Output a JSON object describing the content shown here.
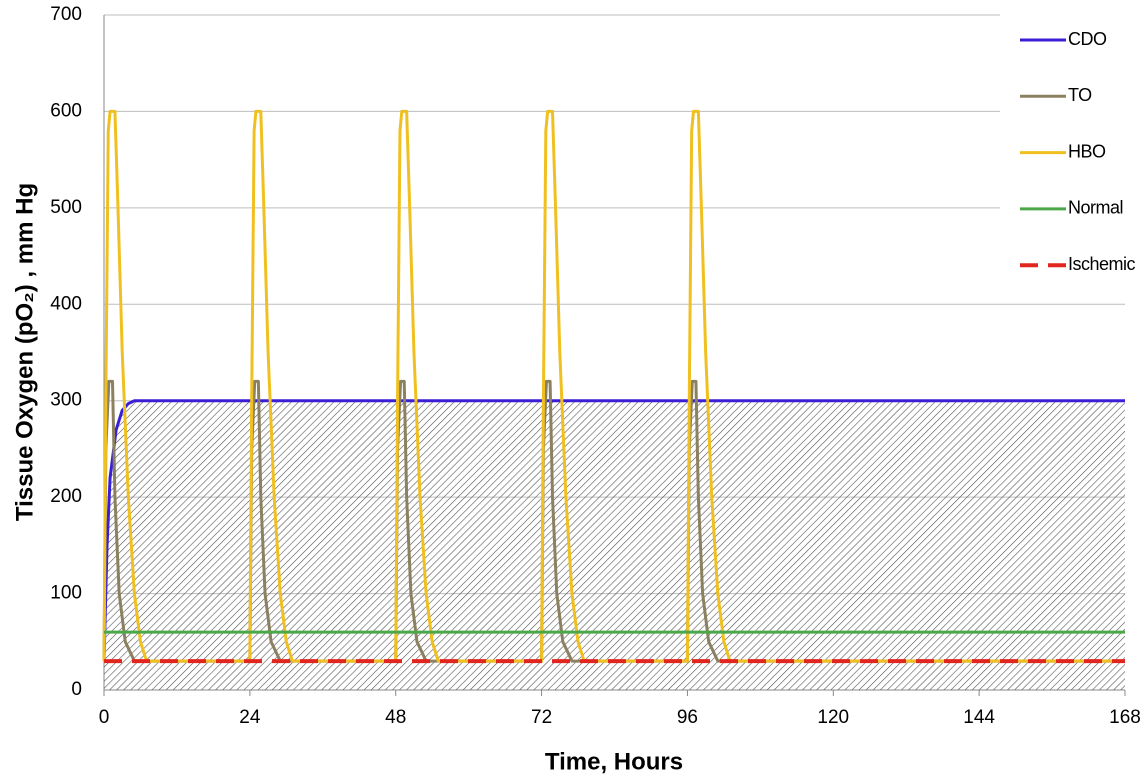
{
  "chart_data": {
    "type": "line",
    "x_label": "Time, Hours",
    "y_label": "Tissue Oxygen (pO₂) , mm Hg",
    "xlim": [
      0,
      168
    ],
    "xticks": [
      0,
      24,
      48,
      72,
      96,
      120,
      144,
      168
    ],
    "ylim": [
      0,
      700
    ],
    "yticks": [
      0,
      100,
      200,
      300,
      400,
      500,
      600,
      700
    ],
    "grid": true,
    "legend": "right",
    "series": [
      {
        "name": "CDO",
        "color": "#3a1fd6",
        "hatch": true,
        "x": [
          0,
          0.5,
          1,
          2,
          3,
          4,
          5,
          168
        ],
        "values": [
          30,
          150,
          220,
          270,
          290,
          297,
          300,
          300
        ]
      },
      {
        "name": "TO",
        "color": "#8b8060",
        "x": [
          0,
          0.3,
          0.8,
          1.4,
          1.8,
          2.5,
          3.5,
          5,
          24,
          24.3,
          24.8,
          25.4,
          25.8,
          26.5,
          27.5,
          29,
          48,
          48.3,
          48.8,
          49.4,
          49.8,
          50.5,
          51.5,
          53,
          72,
          72.3,
          72.8,
          73.4,
          73.8,
          74.5,
          75.5,
          77,
          96,
          96.3,
          96.8,
          97.4,
          97.8,
          98.5,
          99.5,
          101,
          168
        ],
        "values": [
          30,
          250,
          320,
          320,
          200,
          100,
          50,
          30,
          30,
          250,
          320,
          320,
          200,
          100,
          50,
          30,
          30,
          250,
          320,
          320,
          200,
          100,
          50,
          30,
          30,
          250,
          320,
          320,
          200,
          100,
          50,
          30,
          30,
          250,
          320,
          320,
          200,
          100,
          50,
          30,
          30
        ]
      },
      {
        "name": "HBO",
        "color": "#f0c020",
        "x": [
          0,
          0.3,
          0.7,
          1,
          1.8,
          2.3,
          3,
          4,
          5,
          6,
          7,
          24,
          24.3,
          24.7,
          25,
          25.8,
          26.3,
          27,
          28,
          29,
          30,
          31,
          48,
          48.3,
          48.7,
          49,
          49.8,
          50.3,
          51,
          52,
          53,
          54,
          55,
          72,
          72.3,
          72.7,
          73,
          73.8,
          74.3,
          75,
          76,
          77,
          78,
          79,
          96,
          96.3,
          96.7,
          97,
          97.8,
          98.3,
          99,
          100,
          101,
          102,
          103,
          168
        ],
        "values": [
          30,
          300,
          580,
          600,
          600,
          500,
          350,
          200,
          100,
          50,
          30,
          30,
          300,
          580,
          600,
          600,
          500,
          350,
          200,
          100,
          50,
          30,
          30,
          300,
          580,
          600,
          600,
          500,
          350,
          200,
          100,
          50,
          30,
          30,
          300,
          580,
          600,
          600,
          500,
          350,
          200,
          100,
          50,
          30,
          30,
          300,
          580,
          600,
          600,
          500,
          350,
          200,
          100,
          50,
          30,
          30
        ]
      },
      {
        "name": "Normal",
        "color": "#4aa848",
        "x": [
          0,
          168
        ],
        "values": [
          60,
          60
        ]
      },
      {
        "name": "Ischemic",
        "color": "#e0261e",
        "dashed": true,
        "x": [
          0,
          168
        ],
        "values": [
          30,
          30
        ]
      }
    ]
  }
}
